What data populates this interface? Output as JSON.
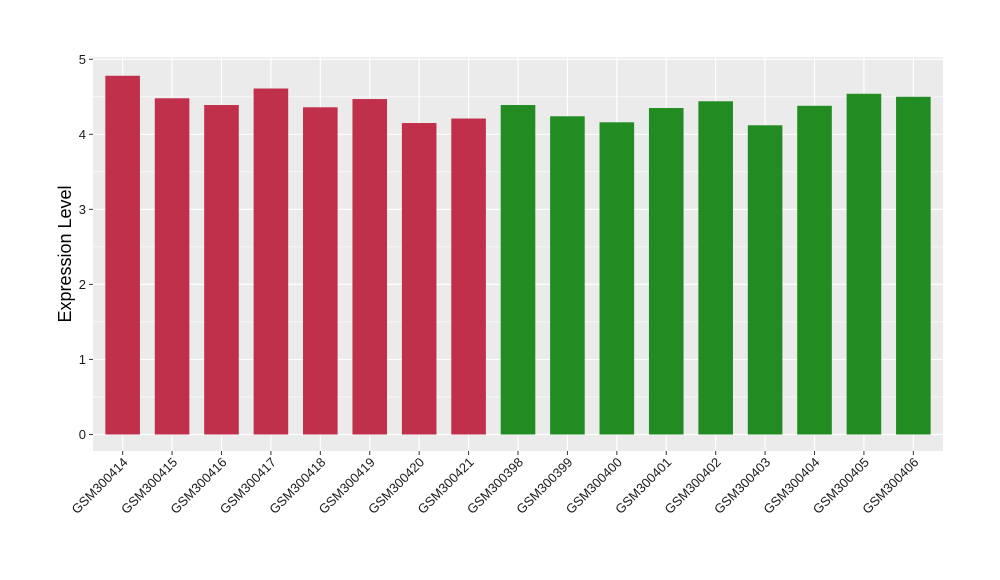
{
  "chart_data": {
    "type": "bar",
    "title": "",
    "xlabel": "",
    "ylabel": "Expression Level",
    "ylim": [
      -0.22,
      5.03
    ],
    "yticks": [
      0,
      1,
      2,
      3,
      4,
      5
    ],
    "grid": true,
    "legend": "none",
    "panel_background": "#ebebeb",
    "gridline_color": "#ffffff",
    "categories": [
      "GSM300414",
      "GSM300415",
      "GSM300416",
      "GSM300417",
      "GSM300418",
      "GSM300419",
      "GSM300420",
      "GSM300421",
      "GSM300398",
      "GSM300399",
      "GSM300400",
      "GSM300401",
      "GSM300402",
      "GSM300403",
      "GSM300404",
      "GSM300405",
      "GSM300406"
    ],
    "values": [
      4.78,
      4.48,
      4.39,
      4.61,
      4.36,
      4.47,
      4.15,
      4.21,
      4.39,
      4.24,
      4.16,
      4.35,
      4.44,
      4.12,
      4.38,
      4.54,
      4.5
    ],
    "bar_colors": [
      "#c0304a",
      "#c0304a",
      "#c0304a",
      "#c0304a",
      "#c0304a",
      "#c0304a",
      "#c0304a",
      "#c0304a",
      "#228b22",
      "#228b22",
      "#228b22",
      "#228b22",
      "#228b22",
      "#228b22",
      "#228b22",
      "#228b22",
      "#228b22"
    ]
  }
}
